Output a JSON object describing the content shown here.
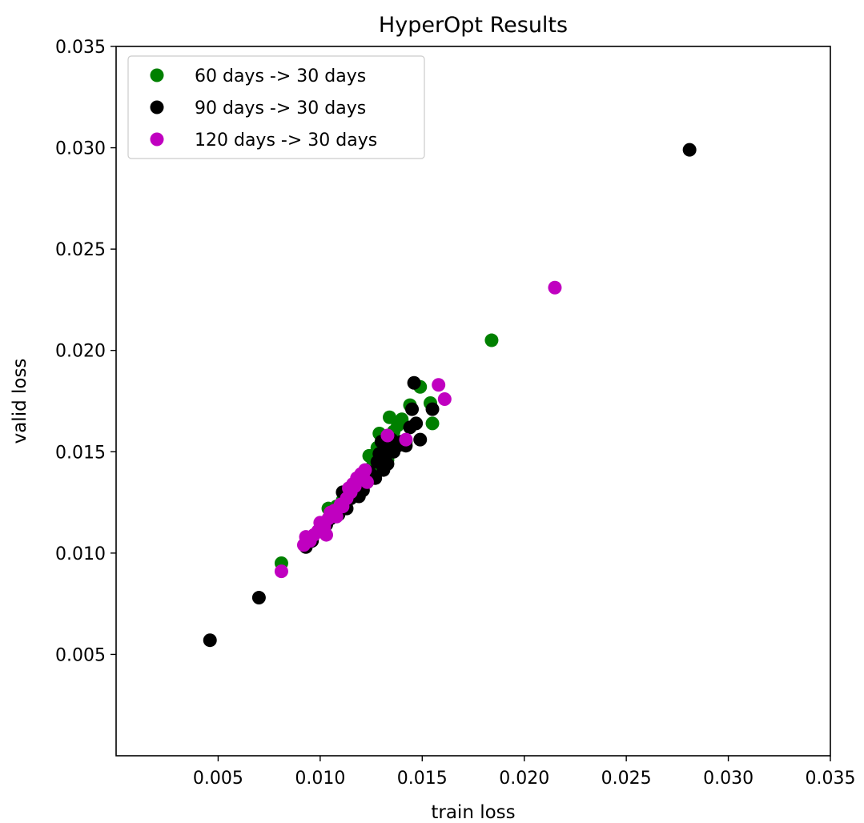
{
  "chart_data": {
    "type": "scatter",
    "title": "HyperOpt Results",
    "xlabel": "train loss",
    "ylabel": "valid loss",
    "xlim": [
      0.0,
      0.035
    ],
    "ylim": [
      0.0,
      0.035
    ],
    "xticks": [
      "0.005",
      "0.010",
      "0.015",
      "0.020",
      "0.025",
      "0.030",
      "0.035"
    ],
    "yticks": [
      "0.005",
      "0.010",
      "0.015",
      "0.020",
      "0.025",
      "0.030",
      "0.035"
    ],
    "grid": false,
    "legend_position": "top-left",
    "series": [
      {
        "name": "60 days -> 30 days",
        "color": "#008000",
        "points": [
          [
            0.0081,
            0.0095
          ],
          [
            0.0104,
            0.0122
          ],
          [
            0.0108,
            0.0123
          ],
          [
            0.0111,
            0.0126
          ],
          [
            0.0114,
            0.0128
          ],
          [
            0.0117,
            0.0131
          ],
          [
            0.0119,
            0.0134
          ],
          [
            0.0121,
            0.0136
          ],
          [
            0.0124,
            0.0148
          ],
          [
            0.0126,
            0.0144
          ],
          [
            0.0128,
            0.0152
          ],
          [
            0.0129,
            0.0159
          ],
          [
            0.0131,
            0.015
          ],
          [
            0.0133,
            0.0146
          ],
          [
            0.0134,
            0.0167
          ],
          [
            0.0136,
            0.016
          ],
          [
            0.0138,
            0.0163
          ],
          [
            0.014,
            0.0166
          ],
          [
            0.0142,
            0.0155
          ],
          [
            0.0144,
            0.0173
          ],
          [
            0.0149,
            0.0182
          ],
          [
            0.0154,
            0.0174
          ],
          [
            0.0155,
            0.0164
          ],
          [
            0.0184,
            0.0205
          ]
        ]
      },
      {
        "name": "90 days -> 30 days",
        "color": "#000000",
        "points": [
          [
            0.0046,
            0.0057
          ],
          [
            0.007,
            0.0078
          ],
          [
            0.0093,
            0.0103
          ],
          [
            0.0096,
            0.0106
          ],
          [
            0.01,
            0.0112
          ],
          [
            0.0103,
            0.0114
          ],
          [
            0.0105,
            0.0117
          ],
          [
            0.0107,
            0.012
          ],
          [
            0.0109,
            0.0119
          ],
          [
            0.011,
            0.0124
          ],
          [
            0.0111,
            0.013
          ],
          [
            0.0113,
            0.0122
          ],
          [
            0.0115,
            0.0127
          ],
          [
            0.0117,
            0.0129
          ],
          [
            0.0118,
            0.0133
          ],
          [
            0.0119,
            0.0128
          ],
          [
            0.0121,
            0.0131
          ],
          [
            0.0123,
            0.0135
          ],
          [
            0.0124,
            0.014
          ],
          [
            0.0126,
            0.0138
          ],
          [
            0.0127,
            0.0137
          ],
          [
            0.0128,
            0.0145
          ],
          [
            0.0129,
            0.0149
          ],
          [
            0.013,
            0.0155
          ],
          [
            0.0131,
            0.0141
          ],
          [
            0.0132,
            0.0148
          ],
          [
            0.0133,
            0.0144
          ],
          [
            0.0134,
            0.0152
          ],
          [
            0.0135,
            0.0156
          ],
          [
            0.0136,
            0.015
          ],
          [
            0.0138,
            0.0153
          ],
          [
            0.014,
            0.0155
          ],
          [
            0.0142,
            0.0153
          ],
          [
            0.0144,
            0.0162
          ],
          [
            0.0145,
            0.0171
          ],
          [
            0.0146,
            0.0184
          ],
          [
            0.0147,
            0.0164
          ],
          [
            0.0149,
            0.0156
          ],
          [
            0.0155,
            0.0171
          ],
          [
            0.0281,
            0.0299
          ]
        ]
      },
      {
        "name": "120 days -> 30 days",
        "color": "#C000C0",
        "points": [
          [
            0.0081,
            0.0091
          ],
          [
            0.0092,
            0.0104
          ],
          [
            0.0093,
            0.0108
          ],
          [
            0.0095,
            0.0106
          ],
          [
            0.0097,
            0.0109
          ],
          [
            0.0099,
            0.0111
          ],
          [
            0.01,
            0.0115
          ],
          [
            0.0102,
            0.0113
          ],
          [
            0.0103,
            0.0109
          ],
          [
            0.0104,
            0.0117
          ],
          [
            0.0105,
            0.012
          ],
          [
            0.0106,
            0.0119
          ],
          [
            0.0107,
            0.0121
          ],
          [
            0.0108,
            0.0118
          ],
          [
            0.011,
            0.0124
          ],
          [
            0.0111,
            0.0123
          ],
          [
            0.0113,
            0.0127
          ],
          [
            0.0114,
            0.0132
          ],
          [
            0.0115,
            0.013
          ],
          [
            0.0116,
            0.0134
          ],
          [
            0.0117,
            0.0133
          ],
          [
            0.0118,
            0.0137
          ],
          [
            0.0119,
            0.0136
          ],
          [
            0.012,
            0.0139
          ],
          [
            0.0121,
            0.0138
          ],
          [
            0.0122,
            0.0141
          ],
          [
            0.0123,
            0.0135
          ],
          [
            0.0133,
            0.0158
          ],
          [
            0.0142,
            0.0156
          ],
          [
            0.0158,
            0.0183
          ],
          [
            0.0161,
            0.0176
          ],
          [
            0.0215,
            0.0231
          ]
        ]
      }
    ]
  }
}
